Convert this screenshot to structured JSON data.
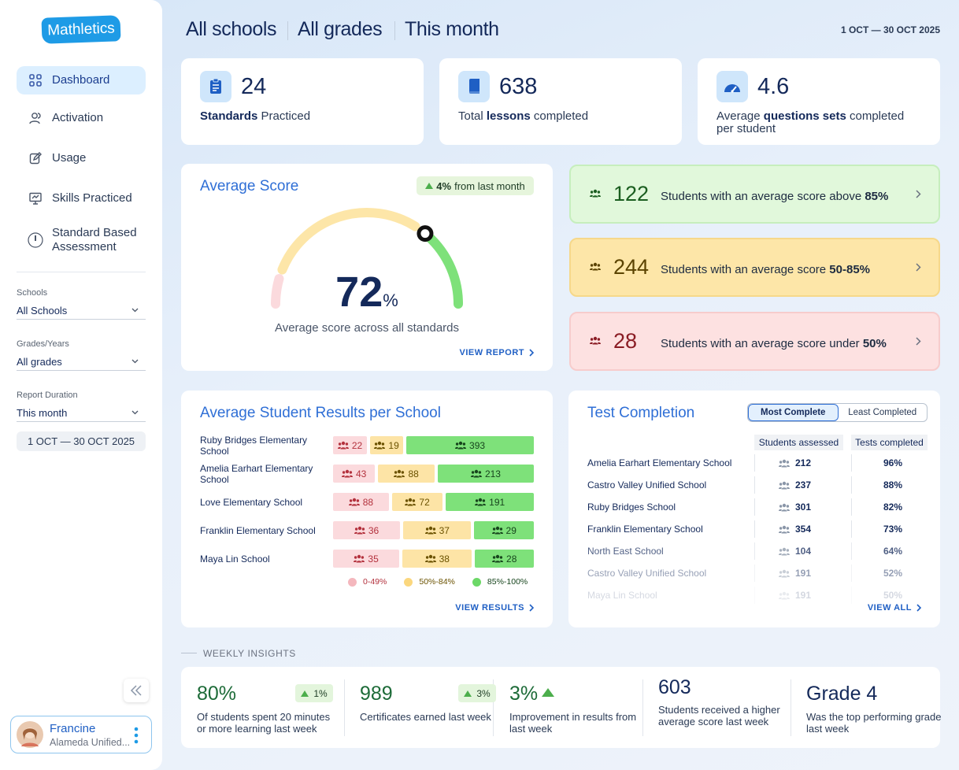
{
  "sidebar": {
    "logo": "Mathletics",
    "nav": [
      "Dashboard",
      "Activation",
      "Usage",
      "Skills Practiced",
      "Standard Based Assessment"
    ],
    "active": 0,
    "filters": [
      {
        "label": "Schools",
        "value": "All Schools"
      },
      {
        "label": "Grades/Years",
        "value": "All grades"
      },
      {
        "label": "Report Duration",
        "value": "This month"
      }
    ],
    "date_range": "1 OCT — 30 OCT 2025",
    "user": {
      "name": "Francine",
      "org": "Alameda Unified..."
    }
  },
  "header": {
    "filters": [
      "All schools",
      "All grades",
      "This month"
    ],
    "date_range": "1 OCT — 30 OCT 2025"
  },
  "stats": [
    {
      "value": 24,
      "label": [
        {
          "text": "Standards",
          "bold": true
        },
        {
          "text": "Practiced"
        }
      ]
    },
    {
      "value": 638,
      "label": [
        {
          "text": "Total"
        },
        {
          "text": "lessons",
          "bold": true
        },
        {
          "text": "completed"
        }
      ]
    },
    {
      "value": 4.6,
      "label": [
        {
          "text": "Average"
        },
        {
          "text": "questions sets",
          "bold": true
        },
        {
          "text": "completed per student"
        }
      ]
    }
  ],
  "average_score": {
    "title": "Average Score",
    "change": {
      "bold": "4%",
      "text": "from last month"
    },
    "value": 72,
    "unit": "%",
    "range": [
      0,
      100
    ],
    "caption": "Average score across all standards",
    "link": "VIEW REPORT"
  },
  "score_bands": [
    {
      "count": 122,
      "text": "Students with an average score above",
      "bold": "85%",
      "tone": "green"
    },
    {
      "count": 244,
      "text": "Students with an average score",
      "bold": "50-85%",
      "tone": "yellow"
    },
    {
      "count": 28,
      "text": "Students with an average score under",
      "bold": "50%",
      "tone": "red"
    }
  ],
  "results": {
    "title": "Average Student Results per School",
    "categories": [
      "Ruby Bridges Elementary School",
      "Amelia Earhart Elementary School",
      "Love Elementary School",
      "Franklin Elementary School",
      "Maya Lin School"
    ],
    "series": [
      {
        "name": "0-49%",
        "color": "#fbdadd",
        "text_color": "#b3313d",
        "dot": "#f4b7bd",
        "values": [
          22,
          43,
          88,
          36,
          35
        ]
      },
      {
        "name": "50%-84%",
        "color": "#fde4a6",
        "text_color": "#6b5200",
        "dot": "#fbd77e",
        "values": [
          19,
          88,
          72,
          37,
          38
        ]
      },
      {
        "name": "85%-100%",
        "color": "#7ee17a",
        "text_color": "#17451d",
        "dot": "#6cd867",
        "values": [
          393,
          213,
          191,
          29,
          28
        ]
      }
    ],
    "link": "VIEW RESULTS"
  },
  "completion": {
    "title": "Test Completion",
    "tabs": [
      "Most Complete",
      "Least Completed"
    ],
    "active_tab": 0,
    "columns": [
      "Students assessed",
      "Tests completed"
    ],
    "rows": [
      {
        "school": "Amelia Earhart Elementary School",
        "students": 212,
        "tests": "96%"
      },
      {
        "school": "Castro Valley Unified School",
        "students": 237,
        "tests": "88%"
      },
      {
        "school": "Ruby Bridges School",
        "students": 301,
        "tests": "82%"
      },
      {
        "school": "Franklin Elementary School",
        "students": 354,
        "tests": "73%"
      },
      {
        "school": "North East School",
        "students": 104,
        "tests": "64%"
      },
      {
        "school": "Castro Valley Unified School",
        "students": 191,
        "tests": "52%"
      },
      {
        "school": "Maya Lin School",
        "students": 191,
        "tests": "50%"
      }
    ],
    "link": "VIEW ALL"
  },
  "insights": {
    "title": "WEEKLY INSIGHTS",
    "items": [
      {
        "value": "80%",
        "change": "1%",
        "text": "Of students spent 20 minutes or more learning last week",
        "tone": "good"
      },
      {
        "value": "989",
        "change": "3%",
        "text": "Certificates earned last week",
        "tone": "good"
      },
      {
        "value": "3%",
        "trend": "up",
        "text": "Improvement in results from last week",
        "tone": "good"
      },
      {
        "value": "603",
        "text": "Students received a higher average score last week",
        "tone": "neutral"
      },
      {
        "value": "Grade 4",
        "text": "Was the top performing grade last week",
        "tone": "neutral"
      }
    ]
  }
}
